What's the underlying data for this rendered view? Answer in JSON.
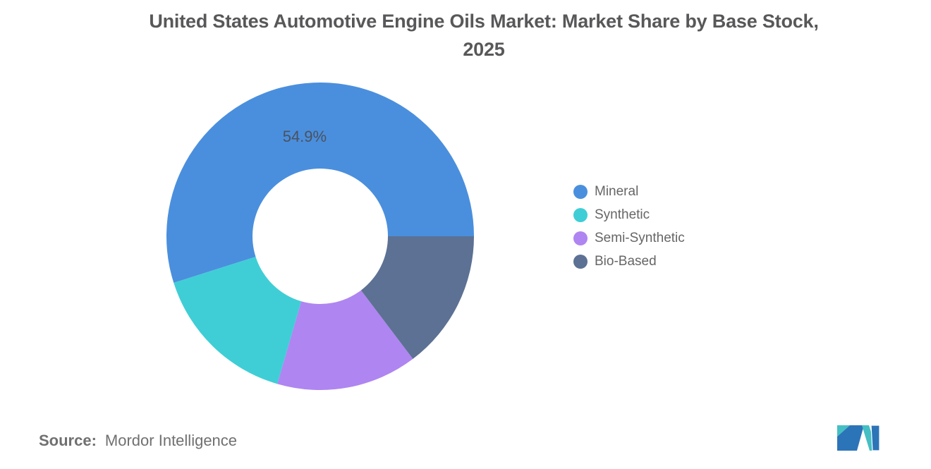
{
  "title": {
    "line1": "United States Automotive Engine Oils Market: Market Share by Base Stock,",
    "line2": "2025",
    "full": "United States Automotive Engine Oils Market: Market Share by Base Stock, 2025"
  },
  "chart_data": {
    "type": "pie",
    "subtype": "donut",
    "title": "United States Automotive Engine Oils Market: Market Share by Base Stock, 2025",
    "categories": [
      "Mineral",
      "Synthetic",
      "Semi-Synthetic",
      "Bio-Based"
    ],
    "values": [
      54.9,
      15.6,
      14.8,
      14.7
    ],
    "colors": [
      "#4A8FDD",
      "#3FCED6",
      "#AF85F1",
      "#5C7193"
    ],
    "visible_labels": {
      "Mineral": "54.9%"
    },
    "start_angle_deg": 0,
    "direction": "counterclockwise",
    "inner_radius_ratio": 0.44,
    "legend_position": "right",
    "label_color": "#4a5260"
  },
  "legend": {
    "items": [
      {
        "label": "Mineral",
        "color": "#4A8FDD"
      },
      {
        "label": "Synthetic",
        "color": "#3FCED6"
      },
      {
        "label": "Semi-Synthetic",
        "color": "#AF85F1"
      },
      {
        "label": "Bio-Based",
        "color": "#5C7193"
      }
    ]
  },
  "source": {
    "prefix": "Source:",
    "text": "Mordor Intelligence"
  },
  "logo": {
    "name": "Mordor Intelligence",
    "teal": "#45BFC4",
    "blue": "#2C74B8"
  }
}
